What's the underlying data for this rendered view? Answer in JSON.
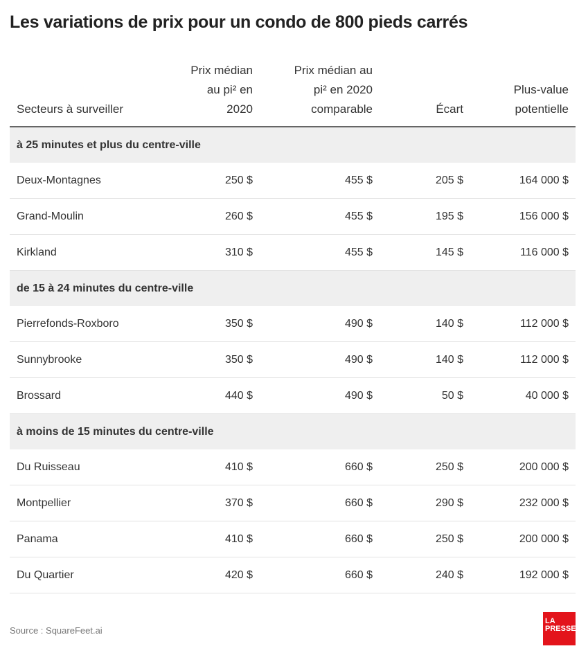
{
  "title": "Les variations de prix pour un condo de 800 pieds carrés",
  "table": {
    "headers": [
      "Secteurs à surveiller",
      "Prix médian au pi² en 2020",
      "Prix médian au pi² en 2020 comparable",
      "Écart",
      "Plus-value potentielle"
    ],
    "groups": [
      {
        "label": "à 25 minutes et plus du centre-ville",
        "rows": [
          [
            "Deux-Montagnes",
            "250 $",
            "455 $",
            "205 $",
            "164 000 $"
          ],
          [
            "Grand-Moulin",
            "260 $",
            "455 $",
            "195 $",
            "156 000 $"
          ],
          [
            "Kirkland",
            "310 $",
            "455 $",
            "145 $",
            "116 000 $"
          ]
        ]
      },
      {
        "label": "de 15 à 24 minutes du centre-ville",
        "rows": [
          [
            "Pierrefonds-Roxboro",
            "350 $",
            "490 $",
            "140 $",
            "112 000 $"
          ],
          [
            "Sunnybrooke",
            "350 $",
            "490 $",
            "140 $",
            "112 000 $"
          ],
          [
            "Brossard",
            "440 $",
            "490 $",
            "50 $",
            "40 000 $"
          ]
        ]
      },
      {
        "label": "à moins de 15 minutes du centre-ville",
        "rows": [
          [
            "Du Ruisseau",
            "410 $",
            "660 $",
            "250 $",
            "200 000 $"
          ],
          [
            "Montpellier",
            "370 $",
            "660 $",
            "290 $",
            "232 000 $"
          ],
          [
            "Panama",
            "410 $",
            "660 $",
            "250 $",
            "200 000 $"
          ],
          [
            "Du Quartier",
            "420 $",
            "660 $",
            "240 $",
            "192 000 $"
          ]
        ]
      }
    ]
  },
  "source": "Source : SquareFeet.ai",
  "logo": [
    "LA",
    "PRESSE"
  ]
}
